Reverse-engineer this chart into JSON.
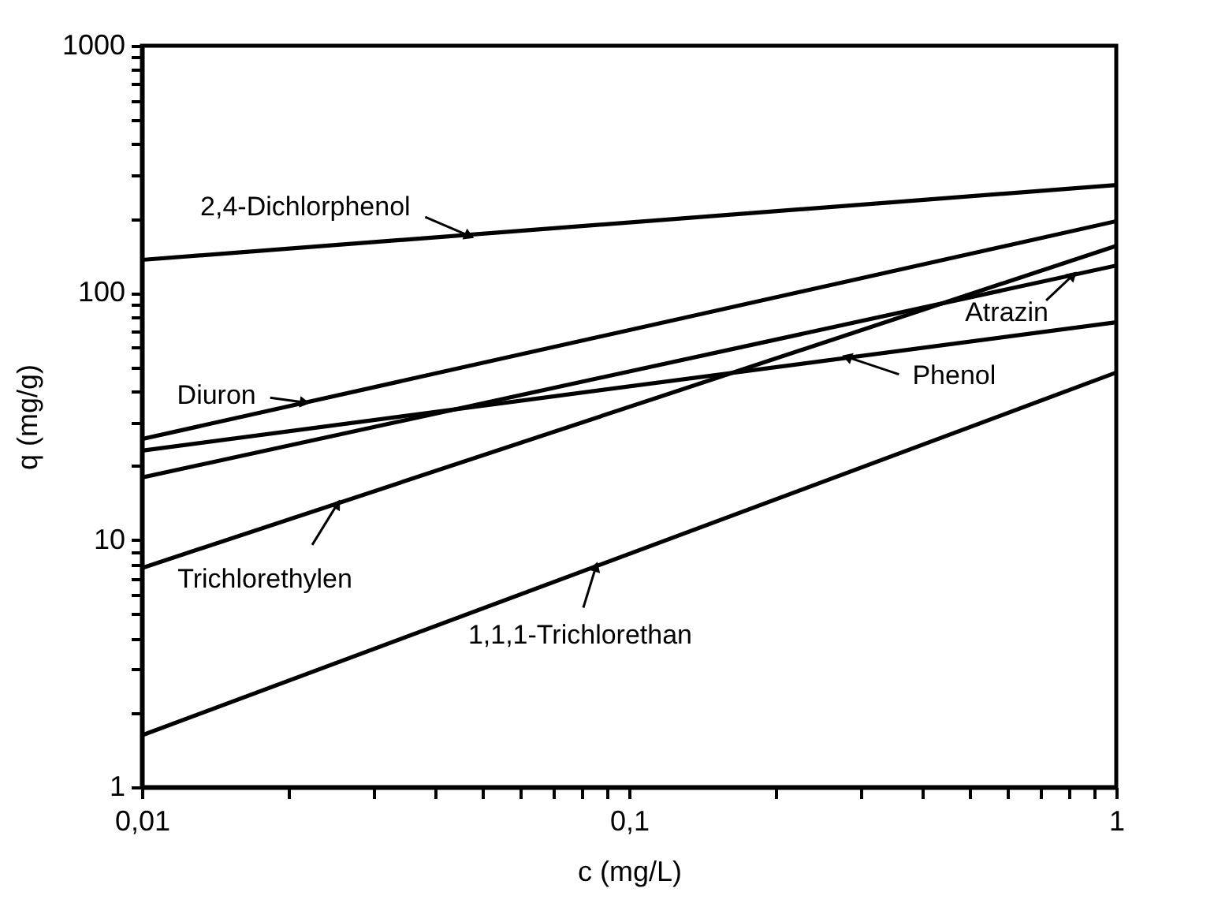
{
  "chart_data": {
    "type": "line",
    "xlabel": "c (mg/L)",
    "ylabel": "q (mg/g)",
    "log": "xy",
    "grid": false,
    "marker": "none",
    "line_style": "solid",
    "xlim": [
      0.01,
      1
    ],
    "ylim": [
      1,
      1000
    ],
    "xticks": [
      {
        "value": 0.01,
        "label": "0,01"
      },
      {
        "value": 0.02,
        "label": null
      },
      {
        "value": 0.03,
        "label": null
      },
      {
        "value": 0.04,
        "label": null
      },
      {
        "value": 0.05,
        "label": null
      },
      {
        "value": 0.06,
        "label": null
      },
      {
        "value": 0.07,
        "label": null
      },
      {
        "value": 0.08,
        "label": null
      },
      {
        "value": 0.09,
        "label": null
      },
      {
        "value": 0.1,
        "label": "0,1"
      },
      {
        "value": 0.2,
        "label": null
      },
      {
        "value": 0.3,
        "label": null
      },
      {
        "value": 0.4,
        "label": null
      },
      {
        "value": 0.5,
        "label": null
      },
      {
        "value": 0.6,
        "label": null
      },
      {
        "value": 0.7,
        "label": null
      },
      {
        "value": 0.8,
        "label": null
      },
      {
        "value": 0.9,
        "label": null
      },
      1
    ],
    "yticks": [
      1,
      {
        "value": 2,
        "label": null
      },
      {
        "value": 3,
        "label": null
      },
      {
        "value": 4,
        "label": null
      },
      {
        "value": 5,
        "label": null
      },
      {
        "value": 6,
        "label": null
      },
      {
        "value": 7,
        "label": null
      },
      {
        "value": 8,
        "label": null
      },
      {
        "value": 9,
        "label": null
      },
      10,
      {
        "value": 20,
        "label": null
      },
      {
        "value": 30,
        "label": null
      },
      {
        "value": 40,
        "label": null
      },
      {
        "value": 50,
        "label": null
      },
      {
        "value": 60,
        "label": null
      },
      {
        "value": 70,
        "label": null
      },
      {
        "value": 80,
        "label": null
      },
      {
        "value": 90,
        "label": null
      },
      100,
      {
        "value": 200,
        "label": null
      },
      {
        "value": 300,
        "label": null
      },
      {
        "value": 400,
        "label": null
      },
      {
        "value": 500,
        "label": null
      },
      {
        "value": 600,
        "label": null
      },
      {
        "value": 700,
        "label": null
      },
      {
        "value": 800,
        "label": null
      },
      {
        "value": 900,
        "label": null
      },
      1000
    ],
    "x": [
      0.01,
      1
    ],
    "series": [
      {
        "color": "#000000",
        "values": [
          136,
          273
        ]
      },
      {
        "color": "#000000",
        "values": [
          25.6,
          195
        ]
      },
      {
        "color": "#000000",
        "values": [
          23,
          76
        ]
      },
      {
        "color": "#000000",
        "values": [
          17.9,
          129
        ]
      },
      {
        "color": "#000000",
        "values": [
          7.7,
          155
        ]
      },
      {
        "color": "#000000",
        "values": [
          1.62,
          47.6
        ]
      }
    ],
    "annotations": [
      {
        "text": "2,4-Dichlorphenol",
        "x": 0.047,
        "y": 170
      },
      {
        "text": "Diuron",
        "x": 0.0216,
        "y": 36
      },
      {
        "text": "Phenol",
        "x": 0.28,
        "y": 55
      },
      {
        "text": "Atrazin",
        "x": 0.815,
        "y": 118
      },
      {
        "text": "Trichlorethylen",
        "x": 0.0252,
        "y": 14
      },
      {
        "text": "1,1,1-Trichlorethan",
        "x": 0.0855,
        "y": 7.8
      }
    ]
  }
}
